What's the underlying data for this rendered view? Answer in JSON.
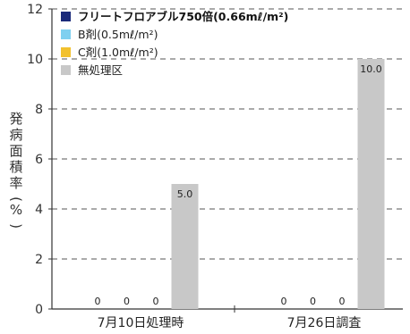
{
  "chart_data": {
    "type": "bar",
    "categories": [
      "7月10日処理時",
      "7月26日調査"
    ],
    "ylabel": "発病面積率(%)",
    "ylim": [
      0,
      12
    ],
    "yticks": [
      0,
      2,
      4,
      6,
      8,
      10,
      12
    ],
    "grid": "dashed horizontal",
    "legend_position": "top-left",
    "series": [
      {
        "name": "フリートフロアブル750倍(0.66mℓ/m²)",
        "color": "#1a2a7a",
        "values": [
          0,
          0
        ]
      },
      {
        "name": "B剤(0.5mℓ/m²)",
        "color": "#7fd0f0",
        "values": [
          0,
          0
        ]
      },
      {
        "name": "C剤(1.0mℓ/m²)",
        "color": "#f2c12e",
        "values": [
          0,
          0
        ]
      },
      {
        "name": "無処理区",
        "color": "#c8c8c8",
        "values": [
          5.0,
          10.0
        ]
      }
    ],
    "data_labels": [
      [
        "0",
        "0",
        "0",
        "5.0"
      ],
      [
        "0",
        "0",
        "0",
        "10.0"
      ]
    ]
  }
}
